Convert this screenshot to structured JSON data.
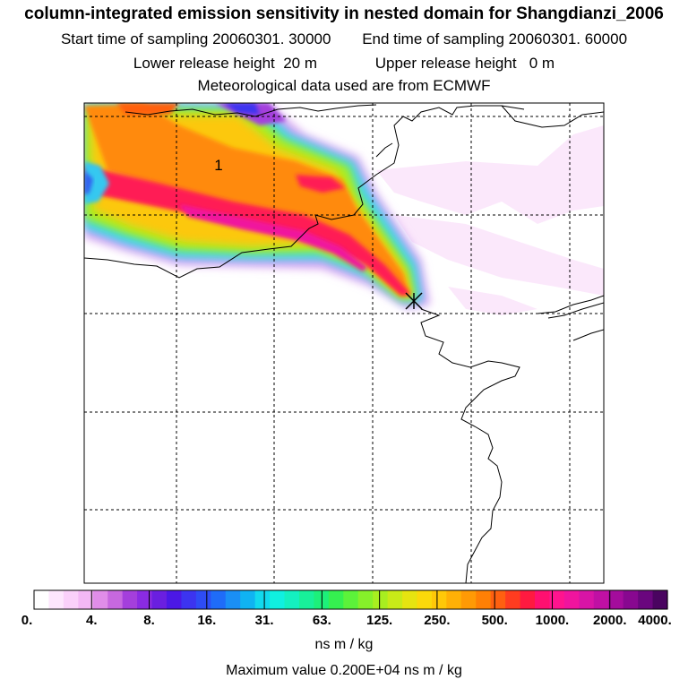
{
  "header": {
    "title": "column-integrated emission sensitivity in nested domain for Shangdianzi_2006",
    "start_label": "Start time of sampling",
    "start_value": "20060301. 30000",
    "end_label": "End time of sampling",
    "end_value": "20060301. 60000",
    "lower_label": "Lower release height",
    "lower_value": "20 m",
    "upper_label": "Upper release height",
    "upper_value": "0 m",
    "met_text": "Meteorological data used are from ECMWF"
  },
  "map": {
    "contour_label": "1",
    "release_marker": "release-site-cross"
  },
  "colorbar": {
    "ticks": [
      "0.",
      "4.",
      "8.",
      "16.",
      "31.",
      "63.",
      "125.",
      "250.",
      "500.",
      "1000.",
      "2000.",
      "4000."
    ],
    "colors": [
      "#ffffff",
      "#fde6fd",
      "#fad0fa",
      "#f3b8f5",
      "#e08de8",
      "#c768df",
      "#a43fdc",
      "#8a2be2",
      "#6a1fe0",
      "#4b18e6",
      "#3c34f0",
      "#2e4cf5",
      "#1f6cf8",
      "#1a8ff5",
      "#10b3f2",
      "#12d9ee",
      "#10f0e0",
      "#14f0c0",
      "#18f09a",
      "#1df07a",
      "#35f050",
      "#5cf23a",
      "#86f02a",
      "#a8ee20",
      "#c8ea18",
      "#e6e410",
      "#fbd90a",
      "#ffc808",
      "#ffb006",
      "#ff9a05",
      "#ff8005",
      "#ff6010",
      "#ff3c20",
      "#ff1a40",
      "#ff1070",
      "#ff148e",
      "#f0149e",
      "#d814a6",
      "#c010a4",
      "#a40c9c",
      "#880890",
      "#6a067e",
      "#4a0460"
    ],
    "unit": "ns m / kg",
    "max_text": "Maximum value  0.200E+04 ns m / kg"
  }
}
